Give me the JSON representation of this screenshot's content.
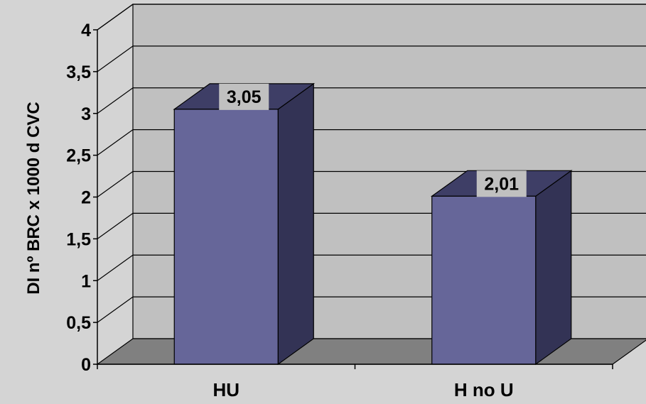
{
  "chart_data": {
    "type": "bar",
    "categories": [
      "HU",
      "H no U"
    ],
    "values": [
      3.05,
      2.01
    ],
    "data_labels": [
      "3,05",
      "2,01"
    ],
    "ylabel": "DI nº BRC x 1000 d CVC",
    "ylim": [
      0,
      4
    ],
    "yticks": [
      0,
      0.5,
      1,
      1.5,
      2,
      2.5,
      3,
      3.5,
      4
    ],
    "ytick_labels": [
      "0",
      "0,5",
      "1",
      "1,5",
      "2",
      "2,5",
      "3",
      "3,5",
      "4"
    ],
    "grid": true,
    "legend": "none",
    "style": "3d",
    "colors": {
      "background": "#d4d4d4",
      "wall": "#c0c0c0",
      "floor": "#808080",
      "bar_front": "#666699",
      "bar_top": "#3e3e66",
      "bar_side": "#333355",
      "label_bg": "#c0c0c0"
    }
  }
}
